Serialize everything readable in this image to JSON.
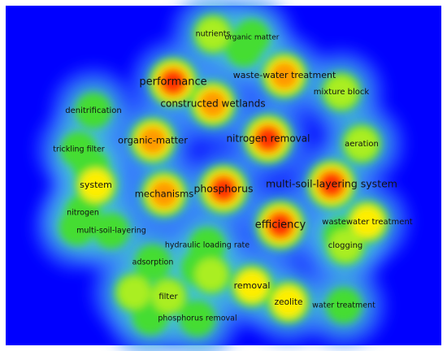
{
  "nodes": [
    {
      "label": "nutrients"
    },
    {
      "label": "organic matter"
    },
    {
      "label": "performance"
    },
    {
      "label": "waste-water treatment"
    },
    {
      "label": "constructed wetlands"
    },
    {
      "label": "mixture block"
    },
    {
      "label": "denitrification"
    },
    {
      "label": "nitrogen removal"
    },
    {
      "label": "organic-matter"
    },
    {
      "label": "aeration"
    },
    {
      "label": "trickling filter"
    },
    {
      "label": "multi-soil-layering system"
    },
    {
      "label": "system"
    },
    {
      "label": "mechanisms"
    },
    {
      "label": "phosphorus"
    },
    {
      "label": "efficiency"
    },
    {
      "label": "wastewater treatment"
    },
    {
      "label": "nitrogen"
    },
    {
      "label": "multi-soil-layering"
    },
    {
      "label": "clogging"
    },
    {
      "label": "hydraulic loading rate"
    },
    {
      "label": "adsorption"
    },
    {
      "label": "removal"
    },
    {
      "label": "filter"
    },
    {
      "label": "zeolite"
    },
    {
      "label": "water treatment"
    },
    {
      "label": "phosphorus removal"
    }
  ]
}
